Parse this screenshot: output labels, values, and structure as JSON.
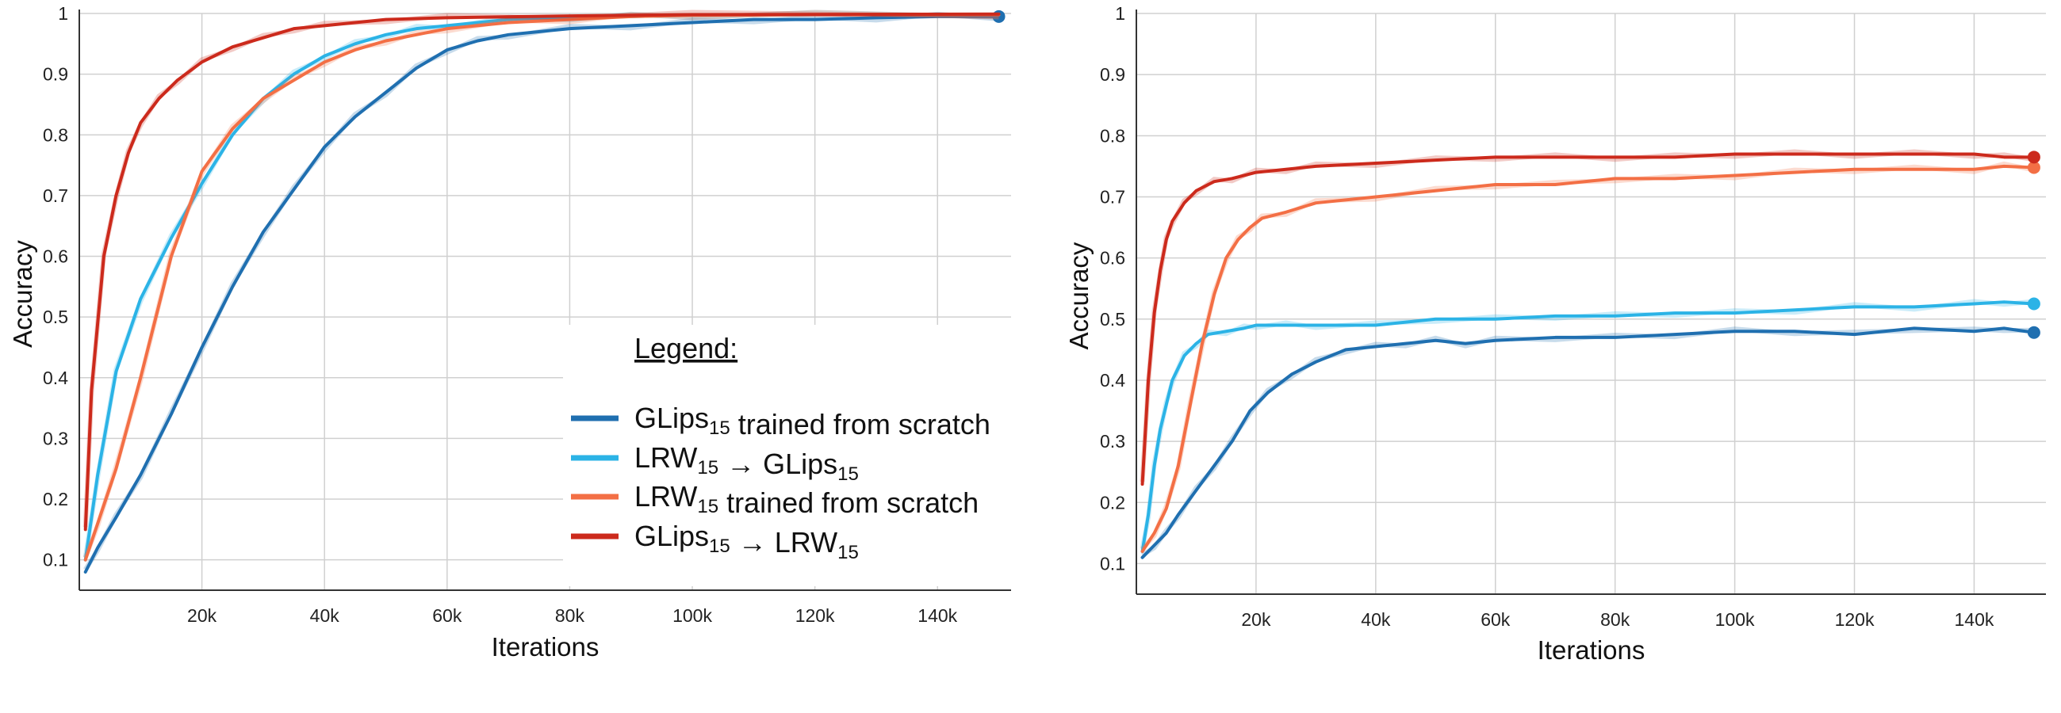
{
  "legend": {
    "title": "Legend:",
    "entries": [
      {
        "series": "glips_scratch",
        "parts": [
          {
            "t": "GLips",
            "sub": false
          },
          {
            "t": "15",
            "sub": true
          },
          {
            "t": " trained from scratch",
            "sub": false
          }
        ]
      },
      {
        "series": "lrw_to_glips",
        "parts": [
          {
            "t": "LRW",
            "sub": false
          },
          {
            "t": "15",
            "sub": true
          },
          {
            "t": " → GLips",
            "sub": false
          },
          {
            "t": "15",
            "sub": true
          }
        ]
      },
      {
        "series": "lrw_scratch",
        "parts": [
          {
            "t": "LRW",
            "sub": false
          },
          {
            "t": "15",
            "sub": true
          },
          {
            "t": " trained from scratch",
            "sub": false
          }
        ]
      },
      {
        "series": "glips_to_lrw",
        "parts": [
          {
            "t": "GLips",
            "sub": false
          },
          {
            "t": "15",
            "sub": true
          },
          {
            "t": " → LRW",
            "sub": false
          },
          {
            "t": "15",
            "sub": true
          }
        ]
      }
    ]
  },
  "chart_data": [
    {
      "type": "line",
      "panel": "left",
      "title": "",
      "xlabel": "Iterations",
      "ylabel": "Accuracy",
      "xlim": [
        0,
        152000
      ],
      "ylim": [
        0.05,
        1.0
      ],
      "xticks": [
        {
          "v": 20000,
          "label": "20k"
        },
        {
          "v": 40000,
          "label": "40k"
        },
        {
          "v": 60000,
          "label": "60k"
        },
        {
          "v": 80000,
          "label": "80k"
        },
        {
          "v": 100000,
          "label": "100k"
        },
        {
          "v": 120000,
          "label": "120k"
        },
        {
          "v": 140000,
          "label": "140k"
        }
      ],
      "yticks": [
        {
          "v": 0.1,
          "label": "0.1"
        },
        {
          "v": 0.2,
          "label": "0.2"
        },
        {
          "v": 0.3,
          "label": "0.3"
        },
        {
          "v": 0.4,
          "label": "0.4"
        },
        {
          "v": 0.5,
          "label": "0.5"
        },
        {
          "v": 0.6,
          "label": "0.6"
        },
        {
          "v": 0.7,
          "label": "0.7"
        },
        {
          "v": 0.8,
          "label": "0.8"
        },
        {
          "v": 0.9,
          "label": "0.9"
        },
        {
          "v": 1,
          "label": "1"
        }
      ],
      "grid": true,
      "legend_position": "bottom-right",
      "series": [
        {
          "key": "glips_scratch",
          "color": "#1f6fb0",
          "marker": true,
          "x": [
            1000,
            3000,
            6000,
            10000,
            15000,
            20000,
            25000,
            30000,
            35000,
            40000,
            45000,
            50000,
            55000,
            60000,
            65000,
            70000,
            80000,
            90000,
            100000,
            110000,
            120000,
            130000,
            140000,
            150000
          ],
          "y": [
            0.08,
            0.12,
            0.17,
            0.24,
            0.34,
            0.45,
            0.55,
            0.64,
            0.71,
            0.78,
            0.83,
            0.87,
            0.91,
            0.94,
            0.955,
            0.965,
            0.975,
            0.98,
            0.985,
            0.99,
            0.99,
            0.993,
            0.995,
            0.995
          ]
        },
        {
          "key": "lrw_to_glips",
          "color": "#2bb3e6",
          "marker": false,
          "x": [
            1000,
            3000,
            6000,
            10000,
            15000,
            20000,
            25000,
            30000,
            35000,
            40000,
            45000,
            50000,
            55000,
            60000,
            70000,
            80000,
            90000,
            100000,
            120000,
            150000
          ],
          "y": [
            0.1,
            0.24,
            0.41,
            0.53,
            0.63,
            0.72,
            0.8,
            0.86,
            0.9,
            0.93,
            0.95,
            0.965,
            0.975,
            0.98,
            0.99,
            0.993,
            0.995,
            0.997,
            0.998,
            0.998
          ]
        },
        {
          "key": "lrw_scratch",
          "color": "#f36f45",
          "marker": false,
          "x": [
            1000,
            3000,
            6000,
            10000,
            15000,
            20000,
            25000,
            30000,
            35000,
            40000,
            45000,
            50000,
            55000,
            60000,
            70000,
            80000,
            90000,
            100000,
            120000,
            150000
          ],
          "y": [
            0.1,
            0.16,
            0.25,
            0.4,
            0.6,
            0.74,
            0.81,
            0.86,
            0.89,
            0.92,
            0.94,
            0.955,
            0.965,
            0.975,
            0.985,
            0.99,
            0.995,
            0.997,
            0.998,
            0.998
          ]
        },
        {
          "key": "glips_to_lrw",
          "color": "#cc2a1c",
          "marker": false,
          "x": [
            1000,
            2000,
            4000,
            6000,
            8000,
            10000,
            13000,
            16000,
            20000,
            25000,
            30000,
            35000,
            40000,
            50000,
            60000,
            80000,
            100000,
            150000
          ],
          "y": [
            0.15,
            0.38,
            0.6,
            0.7,
            0.77,
            0.82,
            0.86,
            0.89,
            0.92,
            0.945,
            0.96,
            0.975,
            0.98,
            0.99,
            0.993,
            0.996,
            0.998,
            0.999
          ]
        }
      ]
    },
    {
      "type": "line",
      "panel": "right",
      "title": "",
      "xlabel": "Iterations",
      "ylabel": "Accuracy",
      "xlim": [
        0,
        152000
      ],
      "ylim": [
        0.05,
        1.0
      ],
      "xticks": [
        {
          "v": 20000,
          "label": "20k"
        },
        {
          "v": 40000,
          "label": "40k"
        },
        {
          "v": 60000,
          "label": "60k"
        },
        {
          "v": 80000,
          "label": "80k"
        },
        {
          "v": 100000,
          "label": "100k"
        },
        {
          "v": 120000,
          "label": "120k"
        },
        {
          "v": 140000,
          "label": "140k"
        }
      ],
      "yticks": [
        {
          "v": 0.1,
          "label": "0.1"
        },
        {
          "v": 0.2,
          "label": "0.2"
        },
        {
          "v": 0.3,
          "label": "0.3"
        },
        {
          "v": 0.4,
          "label": "0.4"
        },
        {
          "v": 0.5,
          "label": "0.5"
        },
        {
          "v": 0.6,
          "label": "0.6"
        },
        {
          "v": 0.7,
          "label": "0.7"
        },
        {
          "v": 0.8,
          "label": "0.8"
        },
        {
          "v": 0.9,
          "label": "0.9"
        },
        {
          "v": 1,
          "label": "1"
        }
      ],
      "grid": true,
      "series": [
        {
          "key": "glips_scratch",
          "color": "#1f6fb0",
          "marker": true,
          "x": [
            1000,
            3000,
            5000,
            7000,
            10000,
            13000,
            16000,
            19000,
            22000,
            26000,
            30000,
            35000,
            40000,
            45000,
            50000,
            55000,
            60000,
            70000,
            80000,
            90000,
            100000,
            110000,
            120000,
            130000,
            140000,
            145000,
            150000
          ],
          "y": [
            0.11,
            0.13,
            0.15,
            0.18,
            0.22,
            0.26,
            0.3,
            0.35,
            0.38,
            0.41,
            0.43,
            0.45,
            0.455,
            0.46,
            0.465,
            0.46,
            0.465,
            0.47,
            0.47,
            0.475,
            0.48,
            0.48,
            0.475,
            0.485,
            0.48,
            0.485,
            0.478
          ]
        },
        {
          "key": "lrw_to_glips",
          "color": "#2bb3e6",
          "marker": true,
          "x": [
            1000,
            2000,
            3000,
            4000,
            5000,
            6000,
            8000,
            10000,
            12000,
            15000,
            18000,
            20000,
            25000,
            30000,
            40000,
            50000,
            60000,
            70000,
            80000,
            90000,
            100000,
            110000,
            120000,
            130000,
            140000,
            145000,
            150000
          ],
          "y": [
            0.12,
            0.18,
            0.26,
            0.32,
            0.36,
            0.4,
            0.44,
            0.46,
            0.475,
            0.48,
            0.485,
            0.49,
            0.49,
            0.49,
            0.49,
            0.5,
            0.5,
            0.505,
            0.505,
            0.51,
            0.51,
            0.515,
            0.52,
            0.52,
            0.525,
            0.528,
            0.525
          ]
        },
        {
          "key": "lrw_scratch",
          "color": "#f36f45",
          "marker": true,
          "x": [
            1000,
            3000,
            5000,
            7000,
            9000,
            11000,
            13000,
            15000,
            17000,
            19000,
            21000,
            25000,
            30000,
            40000,
            50000,
            60000,
            70000,
            80000,
            90000,
            100000,
            110000,
            120000,
            130000,
            140000,
            145000,
            150000
          ],
          "y": [
            0.12,
            0.15,
            0.19,
            0.26,
            0.36,
            0.46,
            0.54,
            0.6,
            0.63,
            0.65,
            0.665,
            0.675,
            0.69,
            0.7,
            0.71,
            0.72,
            0.72,
            0.73,
            0.73,
            0.735,
            0.74,
            0.745,
            0.745,
            0.745,
            0.75,
            0.748
          ]
        },
        {
          "key": "glips_to_lrw",
          "color": "#cc2a1c",
          "marker": true,
          "x": [
            1000,
            2000,
            3000,
            4000,
            5000,
            6000,
            8000,
            10000,
            13000,
            16000,
            20000,
            25000,
            30000,
            40000,
            50000,
            60000,
            70000,
            80000,
            90000,
            100000,
            110000,
            120000,
            130000,
            140000,
            145000,
            150000
          ],
          "y": [
            0.23,
            0.4,
            0.51,
            0.58,
            0.63,
            0.66,
            0.69,
            0.71,
            0.725,
            0.73,
            0.74,
            0.745,
            0.75,
            0.755,
            0.76,
            0.765,
            0.765,
            0.765,
            0.765,
            0.77,
            0.77,
            0.77,
            0.77,
            0.77,
            0.765,
            0.765
          ]
        }
      ]
    }
  ]
}
